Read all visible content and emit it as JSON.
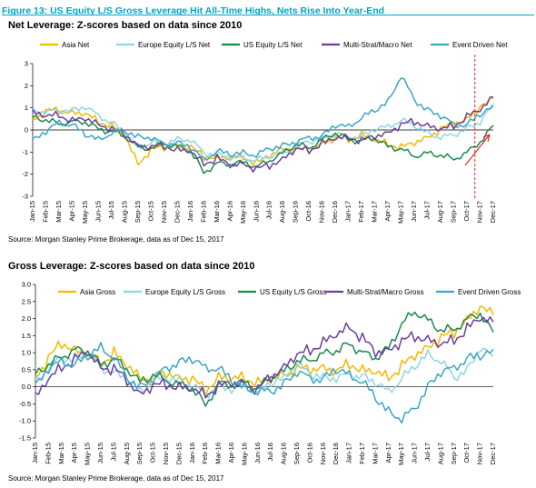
{
  "figure_title": "Figure 13: US Equity L/S Gross Leverage Hit All-Time Highs, Nets Rise Into Year-End",
  "colors": {
    "accent": "#00a3c4",
    "asia": "#f5b800",
    "europe": "#8fd6e4",
    "us": "#1b8a4c",
    "multi": "#6b3fa0",
    "event": "#3aa6c8",
    "marker": "#e02020"
  },
  "chart_data": [
    {
      "type": "line",
      "title": "Net Leverage: Z-scores based on data since 2010",
      "source": "Source: Morgan Stanley Prime Brokerage, data as of Dec 15, 2017",
      "ylim": [
        -3,
        3
      ],
      "yticks": [
        "-3",
        "-2",
        "-1",
        "0",
        "1",
        "2",
        "3"
      ],
      "xticks": [
        "Jan-15",
        "Feb-15",
        "Mar-15",
        "Apr-15",
        "May-15",
        "Jun-15",
        "Jul-15",
        "Aug-15",
        "Sep-15",
        "Oct-15",
        "Nov-15",
        "Dec-15",
        "Jan-16",
        "Feb-16",
        "Mar-16",
        "Apr-16",
        "May-16",
        "Jun-16",
        "Jul-16",
        "Aug-16",
        "Sep-16",
        "Oct-16",
        "Nov-16",
        "Dec-16",
        "Jan-17",
        "Feb-17",
        "Mar-17",
        "Apr-17",
        "May-17",
        "Jun-17",
        "Jul-17",
        "Aug-17",
        "Sep-17",
        "Oct-17",
        "Nov-17",
        "Dec-17"
      ],
      "legend_position": "top",
      "annotations": [
        "dashed vertical line at start of Nov-17",
        "red arrow pointing up-right into Dec-17"
      ],
      "series": [
        {
          "name": "Asia Net",
          "color_key": "asia",
          "values": [
            0.5,
            0.8,
            0.9,
            0.8,
            0.7,
            0.4,
            0.2,
            -0.3,
            -1.5,
            -0.9,
            -0.8,
            -0.7,
            -0.8,
            -1.2,
            -1.2,
            -1.3,
            -1.2,
            -1.5,
            -1.2,
            -0.8,
            -0.9,
            -0.9,
            -0.6,
            -0.4,
            -0.4,
            -0.2,
            -0.5,
            -0.6,
            -0.8,
            -0.6,
            -0.3,
            0.0,
            0.3,
            0.5,
            1.0,
            1.4
          ]
        },
        {
          "name": "Europe Equity L/S Net",
          "color_key": "europe",
          "values": [
            0.9,
            0.8,
            0.9,
            0.9,
            1.0,
            0.7,
            0.3,
            -0.1,
            -0.8,
            -0.6,
            -0.6,
            -0.4,
            -0.5,
            -1.0,
            -1.1,
            -1.3,
            -1.2,
            -1.4,
            -1.2,
            -1.0,
            -0.8,
            -0.5,
            -0.4,
            -0.2,
            -0.3,
            -0.3,
            0.0,
            0.2,
            0.4,
            0.2,
            -0.1,
            -0.4,
            -0.2,
            0.1,
            0.3,
            1.2
          ]
        },
        {
          "name": "US Equity L/S Net",
          "color_key": "us",
          "values": [
            0.6,
            0.4,
            0.3,
            0.4,
            0.3,
            0.1,
            -0.1,
            -0.3,
            -0.7,
            -0.9,
            -0.6,
            -0.7,
            -1.0,
            -1.9,
            -1.5,
            -1.6,
            -1.4,
            -1.7,
            -1.4,
            -1.0,
            -0.7,
            -0.8,
            -0.4,
            -0.2,
            -0.4,
            -0.5,
            -0.4,
            -0.7,
            -0.9,
            -1.2,
            -1.0,
            -1.2,
            -1.3,
            -1.0,
            -0.6,
            0.2
          ]
        },
        {
          "name": "Multi-Strat/Macro Net",
          "color_key": "multi",
          "values": [
            0.8,
            0.6,
            0.7,
            0.4,
            0.5,
            0.3,
            0.0,
            -0.2,
            -0.7,
            -0.8,
            -0.7,
            -0.9,
            -1.0,
            -1.5,
            -1.3,
            -1.6,
            -1.5,
            -1.8,
            -1.6,
            -1.3,
            -0.9,
            -0.9,
            -0.6,
            -0.4,
            -0.3,
            -0.5,
            -0.3,
            -0.1,
            0.2,
            0.4,
            0.2,
            0.0,
            0.2,
            0.6,
            0.9,
            1.5
          ]
        },
        {
          "name": "Event Driven Net",
          "color_key": "event",
          "values": [
            -0.5,
            -0.1,
            0.4,
            0.2,
            -0.2,
            -0.4,
            -0.2,
            0.0,
            -0.3,
            -0.4,
            -0.6,
            -0.6,
            -0.8,
            -1.3,
            -1.0,
            -1.1,
            -1.0,
            -1.2,
            -0.8,
            -0.7,
            -0.6,
            -0.3,
            -0.3,
            0.2,
            0.2,
            0.5,
            0.9,
            1.3,
            2.4,
            1.4,
            0.9,
            0.6,
            0.3,
            0.2,
            0.7,
            1.1
          ]
        }
      ]
    },
    {
      "type": "line",
      "title": "Gross Leverage: Z-scores based on data since 2010",
      "source": "Source: Morgan Stanley Prime Brokerage, data as of Dec 15, 2017",
      "ylim": [
        -1.5,
        3.0
      ],
      "yticks": [
        "-1.5",
        "-1.0",
        "-0.5",
        "0.0",
        "0.5",
        "1.0",
        "1.5",
        "2.0",
        "2.5",
        "3.0"
      ],
      "xticks": [
        "Jan-15",
        "Feb-15",
        "Mar-15",
        "Apr-15",
        "May-15",
        "Jun-15",
        "Jul-15",
        "Aug-15",
        "Sep-15",
        "Oct-15",
        "Nov-15",
        "Dec-15",
        "Jan-16",
        "Feb-16",
        "Mar-16",
        "Apr-16",
        "May-16",
        "Jun-16",
        "Jul-16",
        "Aug-16",
        "Sep-16",
        "Oct-16",
        "Nov-16",
        "Dec-16",
        "Jan-17",
        "Feb-17",
        "Mar-17",
        "Apr-17",
        "May-17",
        "Jun-17",
        "Jul-17",
        "Aug-17",
        "Sep-17",
        "Oct-17",
        "Nov-17",
        "Dec-17"
      ],
      "legend_position": "top",
      "series": [
        {
          "name": "Asia Gross",
          "color_key": "asia",
          "values": [
            0.3,
            0.8,
            1.3,
            1.1,
            0.9,
            0.7,
            1.0,
            0.6,
            0.3,
            0.2,
            0.4,
            0.3,
            0.2,
            -0.1,
            0.3,
            0.2,
            0.3,
            0.1,
            0.2,
            0.4,
            0.5,
            0.5,
            0.6,
            0.4,
            0.7,
            0.5,
            0.4,
            0.3,
            0.6,
            0.9,
            1.2,
            1.4,
            1.6,
            2.0,
            2.3,
            2.1
          ]
        },
        {
          "name": "Europe Equity L/S Gross",
          "color_key": "europe",
          "values": [
            0.2,
            0.5,
            0.9,
            0.8,
            1.0,
            0.6,
            0.4,
            0.2,
            -0.1,
            0.1,
            0.3,
            0.2,
            0.0,
            -0.2,
            0.0,
            -0.1,
            0.1,
            -0.2,
            0.1,
            0.3,
            0.6,
            0.4,
            0.3,
            0.2,
            0.4,
            0.3,
            0.1,
            -0.1,
            0.2,
            0.6,
            1.0,
            0.7,
            0.3,
            0.5,
            1.1,
            0.9
          ]
        },
        {
          "name": "US Equity L/S Gross",
          "color_key": "us",
          "values": [
            0.4,
            0.6,
            0.9,
            1.1,
            1.0,
            0.7,
            0.8,
            0.5,
            0.2,
            0.3,
            0.2,
            0.1,
            -0.1,
            -0.5,
            0.1,
            0.0,
            0.2,
            -0.1,
            0.3,
            0.5,
            0.7,
            0.8,
            1.0,
            1.0,
            1.3,
            1.0,
            0.8,
            1.2,
            1.8,
            2.2,
            2.0,
            1.6,
            1.7,
            2.0,
            2.1,
            1.6
          ]
        },
        {
          "name": "Multi-Strat/Macro Gross",
          "color_key": "multi",
          "values": [
            -0.3,
            0.2,
            0.6,
            0.8,
            1.0,
            0.6,
            0.5,
            0.2,
            -0.2,
            0.0,
            0.1,
            0.0,
            -0.1,
            -0.2,
            0.0,
            0.1,
            0.1,
            -0.1,
            0.3,
            0.6,
            0.9,
            1.1,
            1.3,
            1.5,
            1.8,
            1.4,
            1.0,
            1.1,
            1.3,
            1.5,
            1.4,
            1.2,
            1.4,
            1.7,
            2.0,
            1.9
          ]
        },
        {
          "name": "Event Driven Gross",
          "color_key": "event",
          "values": [
            0.0,
            0.5,
            0.8,
            0.6,
            0.9,
            1.2,
            0.8,
            0.3,
            0.0,
            0.2,
            0.6,
            0.7,
            0.8,
            0.6,
            0.5,
            0.2,
            0.0,
            -0.2,
            -0.1,
            0.1,
            0.4,
            0.3,
            0.2,
            0.5,
            0.4,
            0.1,
            -0.3,
            -0.7,
            -1.0,
            -0.6,
            0.0,
            0.4,
            0.6,
            0.8,
            0.9,
            1.1
          ]
        }
      ]
    }
  ]
}
